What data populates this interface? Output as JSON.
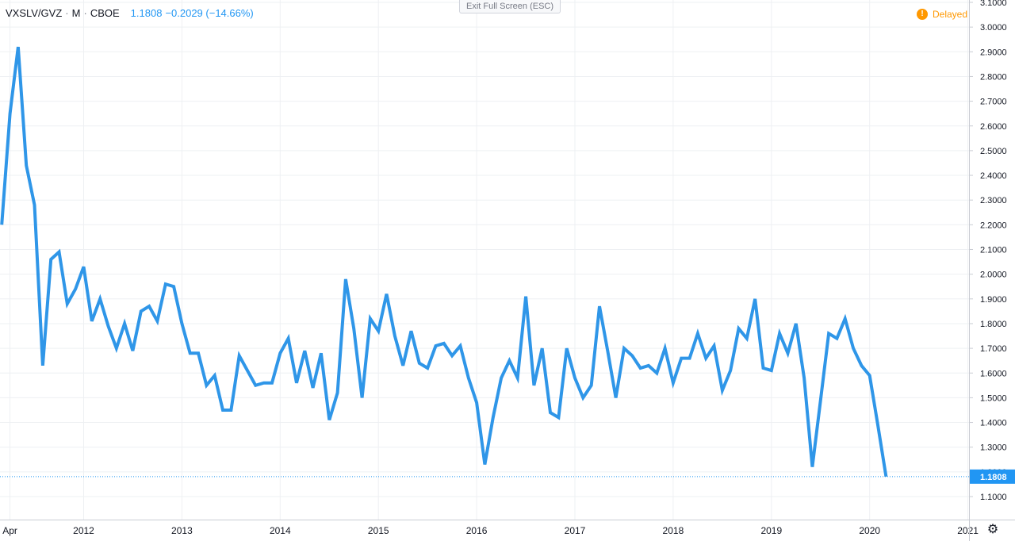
{
  "header": {
    "symbol": "VXSLV/GVZ",
    "interval": "M",
    "exchange": "CBOE",
    "last": "1.1808",
    "change": "−0.2029 (−14.66%)"
  },
  "exit_button": "Exit Full Screen (ESC)",
  "delayed": {
    "label": "Delayed",
    "icon": "exclamation-icon"
  },
  "settings_icon": "gear-icon",
  "colors": {
    "line": "#2f96e8",
    "price_label_bg": "#2196f3",
    "grid": "#eef0f3",
    "delayed": "#ff9800"
  },
  "chart_data": {
    "type": "line",
    "y_axis_position": "right",
    "ylim": [
      1.05,
      3.1
    ],
    "y_ticks": [
      "3.1000",
      "3.0000",
      "2.9000",
      "2.8000",
      "2.7000",
      "2.6000",
      "2.5000",
      "2.4000",
      "2.3000",
      "2.2000",
      "2.1000",
      "2.0000",
      "1.9000",
      "1.8000",
      "1.7000",
      "1.6000",
      "1.5000",
      "1.4000",
      "1.3000",
      "1.2000",
      "1.1000"
    ],
    "x_ticks": [
      "Apr",
      "2012",
      "2013",
      "2014",
      "2015",
      "2016",
      "2017",
      "2018",
      "2019",
      "2020",
      "2021"
    ],
    "last_value_label": "1.1808",
    "grid": true,
    "series": [
      {
        "values": [
          {
            "x": "2011-03",
            "y": 2.2
          },
          {
            "x": "2011-04",
            "y": 2.65
          },
          {
            "x": "2011-05",
            "y": 2.92
          },
          {
            "x": "2011-06",
            "y": 2.44
          },
          {
            "x": "2011-07",
            "y": 2.28
          },
          {
            "x": "2011-08",
            "y": 1.63
          },
          {
            "x": "2011-09",
            "y": 2.06
          },
          {
            "x": "2011-10",
            "y": 2.09
          },
          {
            "x": "2011-11",
            "y": 1.88
          },
          {
            "x": "2011-12",
            "y": 1.94
          },
          {
            "x": "2012-01",
            "y": 2.03
          },
          {
            "x": "2012-02",
            "y": 1.81
          },
          {
            "x": "2012-03",
            "y": 1.9
          },
          {
            "x": "2012-04",
            "y": 1.79
          },
          {
            "x": "2012-05",
            "y": 1.7
          },
          {
            "x": "2012-06",
            "y": 1.8
          },
          {
            "x": "2012-07",
            "y": 1.69
          },
          {
            "x": "2012-08",
            "y": 1.85
          },
          {
            "x": "2012-09",
            "y": 1.87
          },
          {
            "x": "2012-10",
            "y": 1.81
          },
          {
            "x": "2012-11",
            "y": 1.96
          },
          {
            "x": "2012-12",
            "y": 1.95
          },
          {
            "x": "2013-01",
            "y": 1.8
          },
          {
            "x": "2013-02",
            "y": 1.68
          },
          {
            "x": "2013-03",
            "y": 1.68
          },
          {
            "x": "2013-04",
            "y": 1.55
          },
          {
            "x": "2013-05",
            "y": 1.59
          },
          {
            "x": "2013-06",
            "y": 1.45
          },
          {
            "x": "2013-07",
            "y": 1.45
          },
          {
            "x": "2013-08",
            "y": 1.67
          },
          {
            "x": "2013-09",
            "y": 1.61
          },
          {
            "x": "2013-10",
            "y": 1.55
          },
          {
            "x": "2013-11",
            "y": 1.56
          },
          {
            "x": "2013-12",
            "y": 1.56
          },
          {
            "x": "2014-01",
            "y": 1.68
          },
          {
            "x": "2014-02",
            "y": 1.74
          },
          {
            "x": "2014-03",
            "y": 1.56
          },
          {
            "x": "2014-04",
            "y": 1.69
          },
          {
            "x": "2014-05",
            "y": 1.54
          },
          {
            "x": "2014-06",
            "y": 1.68
          },
          {
            "x": "2014-07",
            "y": 1.41
          },
          {
            "x": "2014-08",
            "y": 1.52
          },
          {
            "x": "2014-09",
            "y": 1.98
          },
          {
            "x": "2014-10",
            "y": 1.78
          },
          {
            "x": "2014-11",
            "y": 1.5
          },
          {
            "x": "2014-12",
            "y": 1.82
          },
          {
            "x": "2015-01",
            "y": 1.77
          },
          {
            "x": "2015-02",
            "y": 1.92
          },
          {
            "x": "2015-03",
            "y": 1.75
          },
          {
            "x": "2015-04",
            "y": 1.63
          },
          {
            "x": "2015-05",
            "y": 1.77
          },
          {
            "x": "2015-06",
            "y": 1.64
          },
          {
            "x": "2015-07",
            "y": 1.62
          },
          {
            "x": "2015-08",
            "y": 1.71
          },
          {
            "x": "2015-09",
            "y": 1.72
          },
          {
            "x": "2015-10",
            "y": 1.67
          },
          {
            "x": "2015-11",
            "y": 1.71
          },
          {
            "x": "2015-12",
            "y": 1.58
          },
          {
            "x": "2016-01",
            "y": 1.48
          },
          {
            "x": "2016-02",
            "y": 1.23
          },
          {
            "x": "2016-03",
            "y": 1.42
          },
          {
            "x": "2016-04",
            "y": 1.58
          },
          {
            "x": "2016-05",
            "y": 1.65
          },
          {
            "x": "2016-06",
            "y": 1.58
          },
          {
            "x": "2016-07",
            "y": 1.91
          },
          {
            "x": "2016-08",
            "y": 1.55
          },
          {
            "x": "2016-09",
            "y": 1.7
          },
          {
            "x": "2016-10",
            "y": 1.44
          },
          {
            "x": "2016-11",
            "y": 1.42
          },
          {
            "x": "2016-12",
            "y": 1.7
          },
          {
            "x": "2017-01",
            "y": 1.58
          },
          {
            "x": "2017-02",
            "y": 1.5
          },
          {
            "x": "2017-03",
            "y": 1.55
          },
          {
            "x": "2017-04",
            "y": 1.87
          },
          {
            "x": "2017-05",
            "y": 1.69
          },
          {
            "x": "2017-06",
            "y": 1.5
          },
          {
            "x": "2017-07",
            "y": 1.7
          },
          {
            "x": "2017-08",
            "y": 1.67
          },
          {
            "x": "2017-09",
            "y": 1.62
          },
          {
            "x": "2017-10",
            "y": 1.63
          },
          {
            "x": "2017-11",
            "y": 1.6
          },
          {
            "x": "2017-12",
            "y": 1.7
          },
          {
            "x": "2018-01",
            "y": 1.56
          },
          {
            "x": "2018-02",
            "y": 1.66
          },
          {
            "x": "2018-03",
            "y": 1.66
          },
          {
            "x": "2018-04",
            "y": 1.76
          },
          {
            "x": "2018-05",
            "y": 1.66
          },
          {
            "x": "2018-06",
            "y": 1.71
          },
          {
            "x": "2018-07",
            "y": 1.53
          },
          {
            "x": "2018-08",
            "y": 1.61
          },
          {
            "x": "2018-09",
            "y": 1.78
          },
          {
            "x": "2018-10",
            "y": 1.74
          },
          {
            "x": "2018-11",
            "y": 1.9
          },
          {
            "x": "2018-12",
            "y": 1.62
          },
          {
            "x": "2019-01",
            "y": 1.61
          },
          {
            "x": "2019-02",
            "y": 1.76
          },
          {
            "x": "2019-03",
            "y": 1.68
          },
          {
            "x": "2019-04",
            "y": 1.8
          },
          {
            "x": "2019-05",
            "y": 1.58
          },
          {
            "x": "2019-06",
            "y": 1.22
          },
          {
            "x": "2019-07",
            "y": 1.49
          },
          {
            "x": "2019-08",
            "y": 1.76
          },
          {
            "x": "2019-09",
            "y": 1.74
          },
          {
            "x": "2019-10",
            "y": 1.82
          },
          {
            "x": "2019-11",
            "y": 1.7
          },
          {
            "x": "2019-12",
            "y": 1.63
          },
          {
            "x": "2020-01",
            "y": 1.59
          },
          {
            "x": "2020-02",
            "y": 1.39
          },
          {
            "x": "2020-03",
            "y": 1.1808
          }
        ]
      }
    ]
  }
}
